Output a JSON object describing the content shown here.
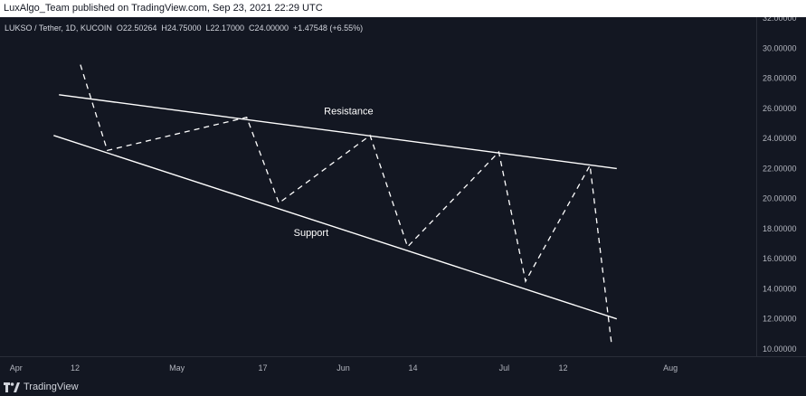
{
  "header": {
    "published_text": "LuxAlgo_Team published on TradingView.com, Sep 23, 2021 22:29 UTC"
  },
  "symbol_line": "LUKSO / Tether, 1D, KUCOIN  O22.50264  H24.75000  L22.17000  C24.00000  +1.47548 (+6.55%)",
  "footer": {
    "brand": "TradingView",
    "logo_icon": "tradingview-logo-icon"
  },
  "colors": {
    "background": "#131722",
    "trendline": "#ffffff",
    "zigzag": "#ffffff",
    "text": "#d1d4dc",
    "axis_text": "#b2b5be"
  },
  "chart_data": {
    "type": "line",
    "title": "",
    "xlabel": "",
    "ylabel": "",
    "grid": false,
    "x_ticks": [
      {
        "label": "Apr",
        "date": "2021-04-01"
      },
      {
        "label": "12",
        "date": "2021-04-12"
      },
      {
        "label": "May",
        "date": "2021-05-01"
      },
      {
        "label": "17",
        "date": "2021-05-17"
      },
      {
        "label": "Jun",
        "date": "2021-06-01"
      },
      {
        "label": "14",
        "date": "2021-06-14"
      },
      {
        "label": "Jul",
        "date": "2021-07-01"
      },
      {
        "label": "12",
        "date": "2021-07-12"
      },
      {
        "label": "Aug",
        "date": "2021-08-01"
      }
    ],
    "y_ticks": [
      "32.00000",
      "30.00000",
      "28.00000",
      "26.00000",
      "24.00000",
      "22.00000",
      "20.00000",
      "18.00000",
      "16.00000",
      "14.00000",
      "12.00000",
      "10.00000"
    ],
    "ylim": [
      9.6,
      32.0
    ],
    "xlim": [
      "2021-03-29",
      "2021-08-17"
    ],
    "annotations": [
      {
        "text": "Resistance",
        "date": "2021-06-02",
        "value": 25.6
      },
      {
        "text": "Support",
        "date": "2021-05-26",
        "value": 17.5
      }
    ],
    "series": [
      {
        "style": "solid",
        "points": [
          {
            "date": "2021-04-09",
            "value": 26.9
          },
          {
            "date": "2021-07-22",
            "value": 22.0
          }
        ]
      },
      {
        "style": "solid",
        "points": [
          {
            "date": "2021-04-08",
            "value": 24.2
          },
          {
            "date": "2021-07-22",
            "value": 12.0
          }
        ]
      },
      {
        "style": "dashed",
        "points": [
          {
            "date": "2021-04-13",
            "value": 28.9
          },
          {
            "date": "2021-04-18",
            "value": 23.2
          },
          {
            "date": "2021-05-14",
            "value": 25.4
          },
          {
            "date": "2021-05-20",
            "value": 19.7
          },
          {
            "date": "2021-06-06",
            "value": 24.2
          },
          {
            "date": "2021-06-13",
            "value": 16.8
          },
          {
            "date": "2021-06-30",
            "value": 23.1
          },
          {
            "date": "2021-07-05",
            "value": 14.5
          },
          {
            "date": "2021-07-17",
            "value": 22.2
          },
          {
            "date": "2021-07-21",
            "value": 10.4
          }
        ]
      }
    ]
  }
}
